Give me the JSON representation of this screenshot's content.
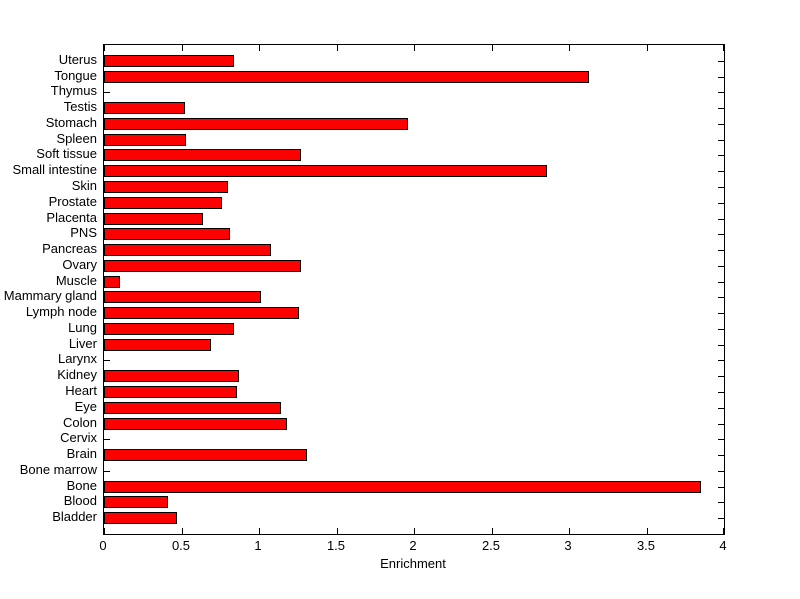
{
  "figure": {
    "background": "#ffffff"
  },
  "chart_data": {
    "type": "bar",
    "orientation": "horizontal",
    "title": "",
    "xlabel": "Enrichment",
    "ylabel": "",
    "xlim": [
      0,
      4
    ],
    "xticks": [
      "0",
      "0.5",
      "1",
      "1.5",
      "2",
      "2.5",
      "3",
      "3.5",
      "4"
    ],
    "grid": false,
    "legend": false,
    "bar_color": "#ff0000",
    "bar_edge_color": "#000000",
    "categories": [
      "Uterus",
      "Tongue",
      "Thymus",
      "Testis",
      "Stomach",
      "Spleen",
      "Soft tissue",
      "Small intestine",
      "Skin",
      "Prostate",
      "Placenta",
      "PNS",
      "Pancreas",
      "Ovary",
      "Muscle",
      "Mammary gland",
      "Lymph node",
      "Lung",
      "Liver",
      "Larynx",
      "Kidney",
      "Heart",
      "Eye",
      "Colon",
      "Cervix",
      "Brain",
      "Bone marrow",
      "Bone",
      "Blood",
      "Bladder"
    ],
    "values": [
      0.84,
      3.13,
      0,
      0.52,
      1.96,
      0.53,
      1.27,
      2.86,
      0.8,
      0.76,
      0.64,
      0.81,
      1.08,
      1.27,
      0.1,
      1.01,
      1.26,
      0.84,
      0.69,
      0,
      0.87,
      0.86,
      1.14,
      1.18,
      0,
      1.31,
      0,
      3.85,
      0.41,
      0.47
    ]
  }
}
